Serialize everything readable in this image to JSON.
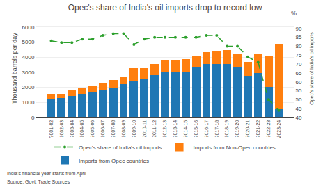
{
  "chart_data": {
    "type": "bar",
    "stacked": true,
    "title": "Opec's share of India's oil imports drop to record low",
    "categories": [
      "2001-02",
      "2002-03",
      "2003-04",
      "2004-05",
      "2005-06",
      "2006-07",
      "2007-08",
      "2008-09",
      "2009-10",
      "2010-11",
      "2011-12",
      "2012-13",
      "2013-14",
      "2014-15",
      "2015-16",
      "2016-17",
      "2017-18",
      "2018-19",
      "2019-20",
      "2020-21",
      "2021-22",
      "2022-23",
      "2023-24"
    ],
    "series": [
      {
        "name": "Imports from Opec countries",
        "type": "bar",
        "values": [
          1200,
          1270,
          1450,
          1580,
          1670,
          1830,
          2000,
          2200,
          2420,
          2560,
          2830,
          3020,
          3050,
          3050,
          3350,
          3550,
          3550,
          3550,
          3380,
          2750,
          2950,
          2050,
          550
        ]
      },
      {
        "name": "Imports from Non-Opec countries",
        "type": "bar",
        "values": [
          380,
          320,
          350,
          380,
          420,
          450,
          500,
          480,
          850,
          730,
          740,
          740,
          770,
          800,
          750,
          780,
          820,
          900,
          880,
          950,
          1250,
          2000,
          4300
        ]
      },
      {
        "name": "Opec's share of India's oil imports",
        "type": "line",
        "axis": "y2",
        "marker": "circle",
        "line_style": "dashed",
        "values": [
          83,
          82,
          82,
          84,
          84,
          86,
          87,
          87,
          81,
          84,
          85,
          85,
          85,
          85,
          85,
          86,
          86,
          80,
          80,
          74,
          71,
          50,
          44
        ]
      }
    ],
    "ylabel": "Thousand barrels per day",
    "y2label": "Opec's share of India's oil imports",
    "ylim": [
      0,
      6500
    ],
    "yticks": [
      0,
      1000,
      2000,
      3000,
      4000,
      5000,
      6000
    ],
    "y2lim": [
      40,
      95
    ],
    "y2ticks": [
      40,
      45,
      50,
      55,
      60,
      65,
      70,
      75,
      80,
      85,
      90
    ],
    "grid": true,
    "legend": "bottom",
    "annotations": [
      "%",
      "India's financial year starts from April",
      "Source: Govt, Trade Sources"
    ]
  }
}
